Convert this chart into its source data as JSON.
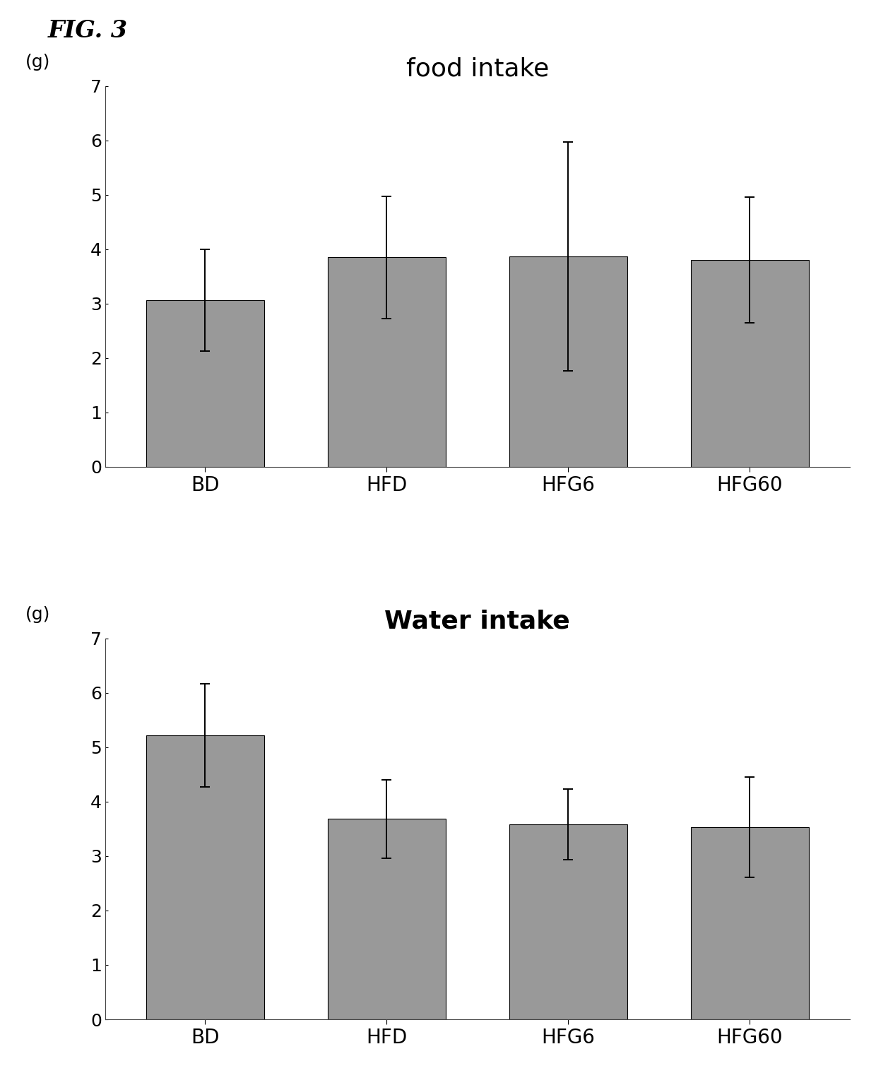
{
  "fig_label": "FIG. 3",
  "charts": [
    {
      "title": "food intake",
      "title_fontweight": "normal",
      "title_fontsize": 26,
      "ylabel": "(g)",
      "categories": [
        "BD",
        "HFD",
        "HFG6",
        "HFG60"
      ],
      "values": [
        3.06,
        3.85,
        3.87,
        3.8
      ],
      "errors": [
        0.93,
        1.12,
        2.1,
        1.15
      ],
      "ylim": [
        0,
        7
      ],
      "yticks": [
        0,
        1,
        2,
        3,
        4,
        5,
        6,
        7
      ]
    },
    {
      "title": "Water intake",
      "title_fontweight": "bold",
      "title_fontsize": 26,
      "ylabel": "(g)",
      "categories": [
        "BD",
        "HFD",
        "HFG6",
        "HFG60"
      ],
      "values": [
        5.22,
        3.68,
        3.58,
        3.53
      ],
      "errors": [
        0.95,
        0.72,
        0.65,
        0.92
      ],
      "ylim": [
        0,
        7
      ],
      "yticks": [
        0,
        1,
        2,
        3,
        4,
        5,
        6,
        7
      ]
    }
  ],
  "bar_color": "#999999",
  "bar_edgecolor": "#000000",
  "bar_width": 0.65,
  "fig_background": "#ffffff",
  "tick_fontsize": 18,
  "xlabel_fontsize": 20,
  "fig_label_fontsize": 24,
  "ylabel_fontsize": 18,
  "capsize": 5,
  "errorbar_linewidth": 1.4,
  "errorbar_capthick": 1.4
}
